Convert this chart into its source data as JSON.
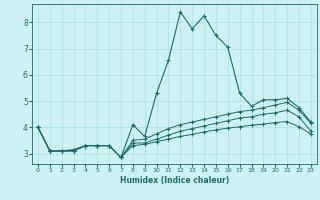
{
  "title": "",
  "xlabel": "Humidex (Indice chaleur)",
  "ylabel": "",
  "background_color": "#cff0f0",
  "grid_color": "#aadddd",
  "line_color": "#1a6e6e",
  "xlim": [
    -0.5,
    23.5
  ],
  "ylim": [
    2.6,
    8.7
  ],
  "xticks": [
    0,
    1,
    2,
    3,
    4,
    5,
    6,
    7,
    8,
    9,
    10,
    11,
    12,
    13,
    14,
    15,
    16,
    17,
    18,
    19,
    20,
    21,
    22,
    23
  ],
  "yticks": [
    3,
    4,
    5,
    6,
    7,
    8
  ],
  "series1_x": [
    0,
    1,
    2,
    3,
    4,
    5,
    6,
    7,
    8,
    9,
    10,
    11,
    12,
    13,
    14,
    15,
    16,
    17,
    18,
    19,
    20,
    21,
    22,
    23
  ],
  "series1_y": [
    4.0,
    3.1,
    3.1,
    3.1,
    3.3,
    3.3,
    3.3,
    2.85,
    4.1,
    3.65,
    5.3,
    6.55,
    8.4,
    7.75,
    8.25,
    7.5,
    7.05,
    5.3,
    4.8,
    5.05,
    5.05,
    5.1,
    4.75,
    4.2
  ],
  "series2_x": [
    0,
    1,
    2,
    3,
    4,
    5,
    6,
    7,
    8,
    9,
    10,
    11,
    12,
    13,
    14,
    15,
    16,
    17,
    18,
    19,
    20,
    21,
    22,
    23
  ],
  "series2_y": [
    4.0,
    3.1,
    3.1,
    3.1,
    3.3,
    3.3,
    3.3,
    2.85,
    3.5,
    3.55,
    3.75,
    3.95,
    4.1,
    4.2,
    4.3,
    4.4,
    4.5,
    4.6,
    4.65,
    4.75,
    4.85,
    4.95,
    4.65,
    4.15
  ],
  "series3_x": [
    0,
    1,
    2,
    3,
    4,
    5,
    6,
    7,
    8,
    9,
    10,
    11,
    12,
    13,
    14,
    15,
    16,
    17,
    18,
    19,
    20,
    21,
    22,
    23
  ],
  "series3_y": [
    4.0,
    3.1,
    3.1,
    3.1,
    3.3,
    3.3,
    3.3,
    2.85,
    3.4,
    3.4,
    3.55,
    3.7,
    3.85,
    3.95,
    4.05,
    4.15,
    4.25,
    4.35,
    4.4,
    4.5,
    4.55,
    4.65,
    4.4,
    3.85
  ],
  "series4_x": [
    0,
    1,
    2,
    3,
    4,
    5,
    6,
    7,
    8,
    9,
    10,
    11,
    12,
    13,
    14,
    15,
    16,
    17,
    18,
    19,
    20,
    21,
    22,
    23
  ],
  "series4_y": [
    4.0,
    3.1,
    3.1,
    3.15,
    3.3,
    3.3,
    3.3,
    2.85,
    3.3,
    3.35,
    3.45,
    3.55,
    3.65,
    3.73,
    3.82,
    3.9,
    3.97,
    4.02,
    4.08,
    4.12,
    4.18,
    4.22,
    4.02,
    3.75
  ]
}
